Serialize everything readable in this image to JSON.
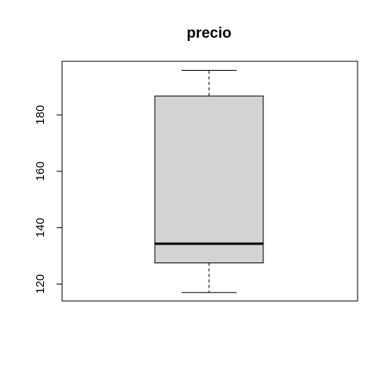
{
  "chart_data": {
    "type": "boxplot",
    "title": "precio",
    "xlabel": "",
    "ylabel": "",
    "ylim": [
      114,
      199
    ],
    "y_ticks": [
      120,
      140,
      160,
      180
    ],
    "y_tick_labels": [
      "120",
      "140",
      "160",
      "180"
    ],
    "grid": false,
    "box": {
      "whisker_low": 117,
      "q1": 127.5,
      "median": 134.3,
      "q3": 186.7,
      "whisker_high": 195.8
    },
    "colors": {
      "box_fill": "#d3d3d3",
      "stroke": "#000000",
      "background": "#ffffff"
    }
  }
}
